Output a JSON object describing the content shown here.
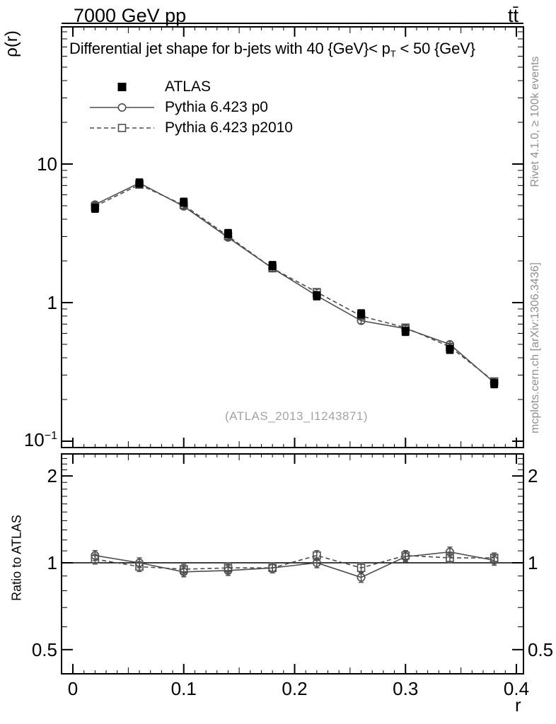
{
  "header": {
    "left": "7000 GeV pp",
    "right": "tt̄"
  },
  "axes": {
    "y_label_main": "ρ(r)",
    "y_label_ratio": "Ratio to ATLAS",
    "x_label": "r"
  },
  "title": {
    "pre": "Differential jet shape for b-jets with 40 {GeV}< p",
    "sub": "T",
    "post": " < 50 {GeV}"
  },
  "watermark": "(ATLAS_2013_I1243871)",
  "sidebar_right": {
    "top": "Rivet 4.1.0, ≥ 100k events",
    "bottom": "mcplots.cern.ch [arXiv:1306.3436]"
  },
  "legend": [
    {
      "label": "ATLAS",
      "marker": "filled-square",
      "line": "none",
      "color": "#000000"
    },
    {
      "label": "Pythia 6.423 p0",
      "marker": "open-circle",
      "line": "solid",
      "color": "#4d4d4d"
    },
    {
      "label": "Pythia 6.423 p2010",
      "marker": "open-square",
      "line": "dashed",
      "color": "#4d4d4d"
    }
  ],
  "colors": {
    "frame": "#000000",
    "data": "#000000",
    "model": "#4d4d4d",
    "muted_text": "#8f8f8f",
    "watermark": "#a3a3a3"
  },
  "chart_data": [
    {
      "type": "line",
      "panel": "main",
      "title": "Differential jet shape for b-jets with 40 {GeV}< p_T < 50 {GeV}",
      "xlabel": "r",
      "ylabel": "ρ(r)",
      "yscale": "log",
      "grid": false,
      "legend_position": "top-left",
      "xlim": [
        -0.01,
        0.406
      ],
      "ylim": [
        0.09,
        98
      ],
      "xticks": {
        "major": [
          0,
          0.1,
          0.2,
          0.3,
          0.4
        ],
        "labels": [
          "0",
          "0.1",
          "0.2",
          "0.3",
          "0.4"
        ],
        "minor_step": 0.01
      },
      "yticks": {
        "major": [
          0.1,
          1,
          10
        ],
        "labels": [
          "10^-1",
          "1",
          "10"
        ]
      },
      "x": [
        0.02,
        0.06,
        0.1,
        0.14,
        0.18,
        0.22,
        0.26,
        0.3,
        0.34,
        0.38
      ],
      "series": [
        {
          "name": "ATLAS",
          "role": "data",
          "marker": "filled-square",
          "line": "none",
          "color": "#000000",
          "values": [
            4.8,
            7.3,
            5.3,
            3.15,
            1.85,
            1.12,
            0.83,
            0.62,
            0.46,
            0.26
          ]
        },
        {
          "name": "Pythia 6.423 p0",
          "role": "mc",
          "marker": "open-circle",
          "line": "solid",
          "color": "#4d4d4d",
          "values": [
            5.1,
            7.3,
            4.95,
            2.95,
            1.77,
            1.12,
            0.74,
            0.65,
            0.5,
            0.265
          ]
        },
        {
          "name": "Pythia 6.423 p2010",
          "role": "mc",
          "marker": "open-square",
          "line": "dashed",
          "color": "#4d4d4d",
          "values": [
            4.95,
            7.1,
            5.05,
            3.02,
            1.77,
            1.19,
            0.8,
            0.66,
            0.48,
            0.27
          ]
        }
      ]
    },
    {
      "type": "line",
      "panel": "ratio",
      "ylabel": "Ratio to ATLAS",
      "yscale": "log",
      "grid": false,
      "reference_line": 1,
      "xlim": [
        -0.01,
        0.406
      ],
      "ylim": [
        0.41,
        2.38
      ],
      "xticks": {
        "major": [
          0,
          0.1,
          0.2,
          0.3,
          0.4
        ],
        "labels": [
          "0",
          "0.1",
          "0.2",
          "0.3",
          "0.4"
        ],
        "minor_step": 0.01
      },
      "yticks": {
        "major": [
          0.5,
          1,
          2
        ],
        "labels": [
          "0.5",
          "1",
          "2"
        ]
      },
      "x": [
        0.02,
        0.06,
        0.1,
        0.14,
        0.18,
        0.22,
        0.26,
        0.3,
        0.34,
        0.38
      ],
      "series": [
        {
          "name": "Pythia 6.423 p0",
          "role": "mc",
          "marker": "open-circle",
          "line": "solid",
          "color": "#4d4d4d",
          "values": [
            1.06,
            1.0,
            0.93,
            0.94,
            0.96,
            1.0,
            0.89,
            1.05,
            1.09,
            1.02
          ]
        },
        {
          "name": "Pythia 6.423 p2010",
          "role": "mc",
          "marker": "open-square",
          "line": "dashed",
          "color": "#4d4d4d",
          "values": [
            1.03,
            0.97,
            0.95,
            0.96,
            0.96,
            1.06,
            0.96,
            1.06,
            1.04,
            1.04
          ]
        }
      ]
    }
  ]
}
